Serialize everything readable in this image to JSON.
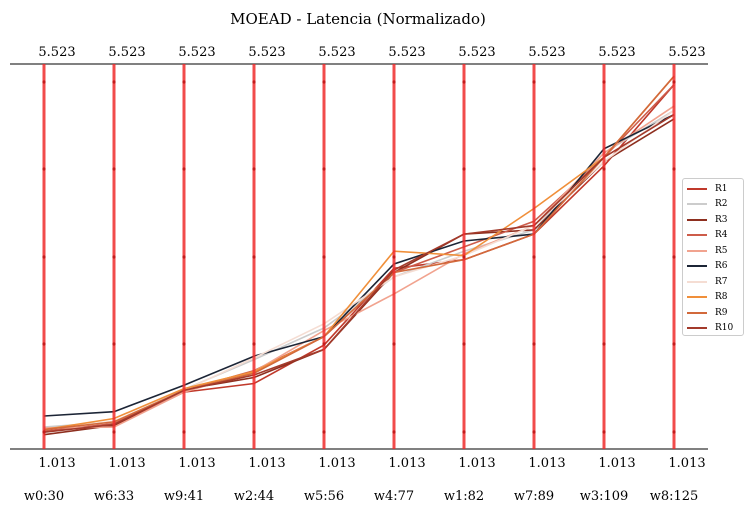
{
  "chart_data": {
    "type": "parallel-coordinates",
    "title": "MOEAD - Latencia (Normalizado)",
    "axes": [
      "w0:30",
      "w6:33",
      "w9:41",
      "w2:44",
      "w5:56",
      "w4:77",
      "w1:82",
      "w7:89",
      "w3:109",
      "w8:125"
    ],
    "axis_max_label": "5.523",
    "axis_min_label": "1.013",
    "ylim": [
      1.013,
      5.523
    ],
    "legend_position": "right",
    "series": [
      {
        "name": "R1",
        "color": "#c0392b",
        "values": [
          1.23,
          1.28,
          1.68,
          1.78,
          2.23,
          3.13,
          3.23,
          3.53,
          4.33,
          5.28
        ]
      },
      {
        "name": "R2",
        "color": "#cccccc",
        "values": [
          1.27,
          1.33,
          1.71,
          2.06,
          2.43,
          3.03,
          3.33,
          3.58,
          4.48,
          4.98
        ]
      },
      {
        "name": "R3",
        "color": "#8e2f1f",
        "values": [
          1.18,
          1.29,
          1.71,
          1.85,
          2.18,
          3.08,
          3.53,
          3.58,
          4.38,
          4.88
        ]
      },
      {
        "name": "R4",
        "color": "#cd5c4a",
        "values": [
          1.22,
          1.31,
          1.7,
          1.93,
          2.33,
          3.08,
          3.38,
          3.68,
          4.43,
          5.28
        ]
      },
      {
        "name": "R5",
        "color": "#f1a38f",
        "values": [
          1.26,
          1.27,
          1.68,
          1.92,
          2.4,
          2.83,
          3.3,
          3.63,
          4.48,
          5.03
        ]
      },
      {
        "name": "R6",
        "color": "#1c2536",
        "values": [
          1.4,
          1.45,
          1.76,
          2.1,
          2.33,
          3.18,
          3.45,
          3.53,
          4.53,
          4.93
        ]
      },
      {
        "name": "R7",
        "color": "#f5ddd3",
        "values": [
          1.24,
          1.34,
          1.7,
          2.08,
          2.48,
          3.03,
          3.28,
          3.63,
          4.38,
          4.98
        ]
      },
      {
        "name": "R8",
        "color": "#f08f3a",
        "values": [
          1.24,
          1.37,
          1.72,
          1.92,
          2.33,
          3.33,
          3.28,
          3.83,
          4.43,
          5.38
        ]
      },
      {
        "name": "R9",
        "color": "#d2693b",
        "values": [
          1.24,
          1.33,
          1.7,
          1.9,
          2.33,
          3.08,
          3.23,
          3.53,
          4.43,
          5.38
        ]
      },
      {
        "name": "R10",
        "color": "#a33a2b",
        "values": [
          1.21,
          1.3,
          1.7,
          1.88,
          2.18,
          3.11,
          3.53,
          3.63,
          4.43,
          4.93
        ]
      }
    ]
  }
}
